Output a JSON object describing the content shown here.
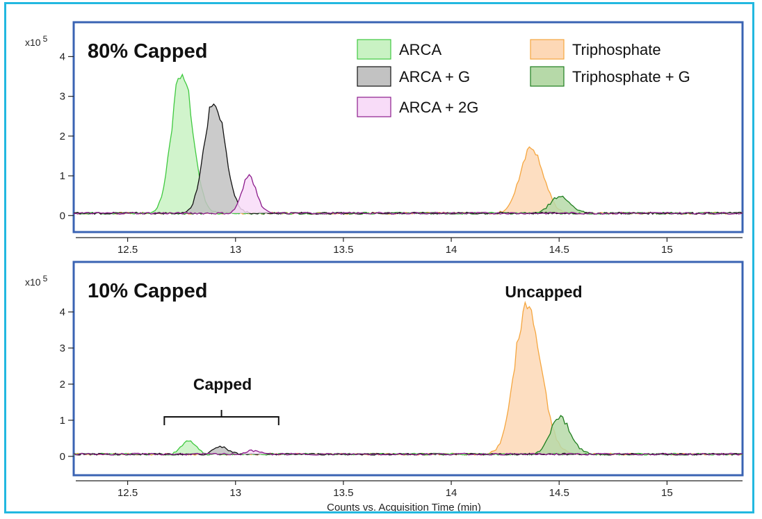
{
  "xlabel": "Counts vs. Acquisition Time (min)",
  "legend": [
    {
      "label": "ARCA",
      "stroke": "#3fc93f",
      "fill": "#c9f2c3"
    },
    {
      "label": "ARCA + G",
      "stroke": "#111111",
      "fill": "#c2c2c2"
    },
    {
      "label": "ARCA + 2G",
      "stroke": "#8b1a8b",
      "fill": "#f8dcf8"
    },
    {
      "label": "Triphosphate",
      "stroke": "#f5a63f",
      "fill": "#fdd8b6"
    },
    {
      "label": "Triphosphate + G",
      "stroke": "#1e7e1e",
      "fill": "#b6d9a8"
    }
  ],
  "colors": {
    "panel_border": "#3a63b3",
    "outer_border": "#22b8e0",
    "axis": "#222222"
  },
  "chart_data": [
    {
      "type": "area",
      "title": "80% Capped",
      "y_multiplier": "x10 5",
      "xlim": [
        12.25,
        15.35
      ],
      "ylim": [
        -0.1,
        4.2
      ],
      "xticks": [
        12.5,
        13,
        13.5,
        14,
        14.5,
        15
      ],
      "xtick_labels": [
        "12.5",
        "13",
        "13.5",
        "14",
        "14.5",
        "15"
      ],
      "yticks": [
        0,
        1,
        2,
        3,
        4
      ],
      "ytick_labels": [
        "0",
        "1",
        "2",
        "3",
        "4"
      ],
      "baseline": 0.06,
      "series": [
        {
          "name": "ARCA",
          "peaks": [
            {
              "center": 12.75,
              "height": 3.6,
              "width_left": 0.045,
              "width_right": 0.05
            }
          ]
        },
        {
          "name": "ARCA + G",
          "peaks": [
            {
              "center": 12.9,
              "height": 2.85,
              "width_left": 0.045,
              "width_right": 0.05
            }
          ]
        },
        {
          "name": "ARCA + 2G",
          "peaks": [
            {
              "center": 13.06,
              "height": 0.95,
              "width_left": 0.03,
              "width_right": 0.035
            }
          ]
        },
        {
          "name": "Triphosphate",
          "peaks": [
            {
              "center": 14.37,
              "height": 1.68,
              "width_left": 0.05,
              "width_right": 0.055
            }
          ]
        },
        {
          "name": "Triphosphate + G",
          "peaks": [
            {
              "center": 14.5,
              "height": 0.42,
              "width_left": 0.04,
              "width_right": 0.05
            }
          ]
        }
      ]
    },
    {
      "type": "area",
      "title": "10% Capped",
      "y_multiplier": "x10 5",
      "xlim": [
        12.25,
        15.35
      ],
      "ylim": [
        -0.1,
        4.5
      ],
      "xticks": [
        12.5,
        13,
        13.5,
        14,
        14.5,
        15
      ],
      "xtick_labels": [
        "12.5",
        "13",
        "13.5",
        "14",
        "14.5",
        "15"
      ],
      "yticks": [
        0,
        1,
        2,
        3,
        4
      ],
      "ytick_labels": [
        "0",
        "1",
        "2",
        "3",
        "4"
      ],
      "baseline": 0.06,
      "annotations": {
        "uncapped": "Uncapped",
        "capped": "Capped",
        "capped_range": [
          12.67,
          13.2
        ]
      },
      "series": [
        {
          "name": "ARCA",
          "peaks": [
            {
              "center": 12.78,
              "height": 0.38,
              "width_left": 0.03,
              "width_right": 0.035
            }
          ]
        },
        {
          "name": "ARCA + G",
          "peaks": [
            {
              "center": 12.93,
              "height": 0.22,
              "width_left": 0.03,
              "width_right": 0.035
            }
          ]
        },
        {
          "name": "ARCA + 2G",
          "peaks": [
            {
              "center": 13.08,
              "height": 0.1,
              "width_left": 0.03,
              "width_right": 0.035
            }
          ]
        },
        {
          "name": "Triphosphate",
          "peaks": [
            {
              "center": 14.35,
              "height": 4.15,
              "width_left": 0.055,
              "width_right": 0.065
            }
          ]
        },
        {
          "name": "Triphosphate + G",
          "peaks": [
            {
              "center": 14.5,
              "height": 1.05,
              "width_left": 0.04,
              "width_right": 0.05
            }
          ]
        }
      ]
    }
  ]
}
